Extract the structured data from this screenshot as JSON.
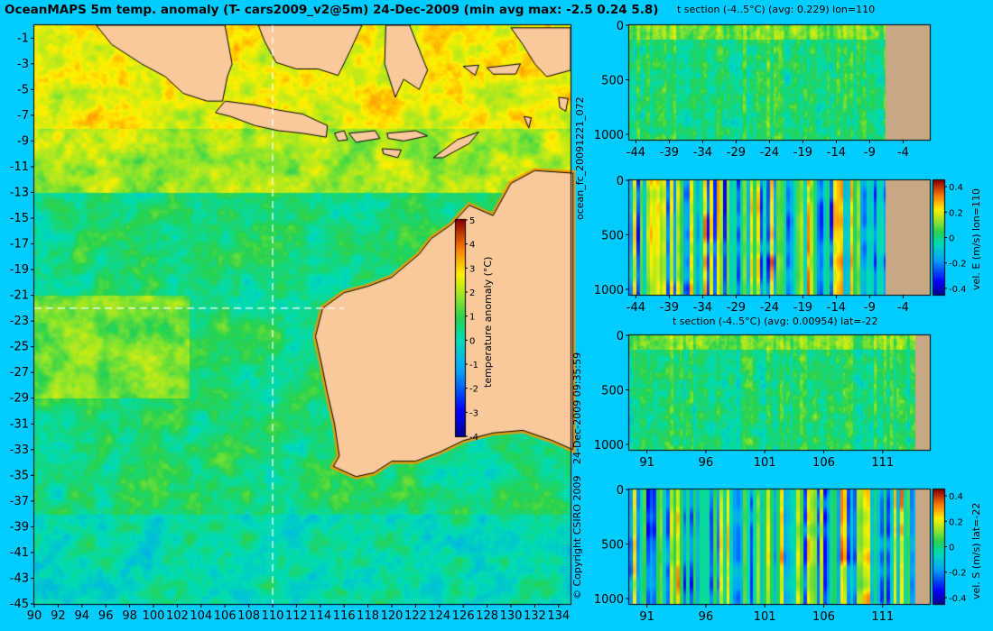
{
  "title": "OceanMAPS 5m temp. anomaly (T- cars2009_v2@5m) 24-Dec-2009 (min avg max: -2.5 0.24 5.8)",
  "colors": {
    "background": "#00ccff",
    "land": "#f9c89b",
    "section_land": "#c8a882"
  },
  "side_labels": {
    "forecast_id": "ocean_fc_20091221_072",
    "timestamp": "24-Dec-2009 09:35:59",
    "copyright": "© Copyright CSIRO 2009"
  },
  "chart_data": [
    {
      "type": "heatmap",
      "title": "OceanMAPS 5m temp. anomaly (T- cars2009_v2@5m) 24-Dec-2009 (min avg max: -2.5 0.24 5.8)",
      "x_ticks": [
        "90",
        "92",
        "94",
        "96",
        "98",
        "100",
        "102",
        "104",
        "106",
        "108",
        "110",
        "112",
        "114",
        "116",
        "118",
        "120",
        "122",
        "124",
        "126",
        "128",
        "130",
        "132",
        "134"
      ],
      "y_ticks": [
        "-1",
        "-3",
        "-5",
        "-7",
        "-9",
        "-11",
        "-13",
        "-15",
        "-17",
        "-19",
        "-21",
        "-23",
        "-25",
        "-27",
        "-29",
        "-31",
        "-33",
        "-35",
        "-37",
        "-39",
        "-41",
        "-43",
        "-45"
      ],
      "xlim": [
        90,
        135
      ],
      "ylim": [
        -45,
        0
      ],
      "crosshair": {
        "lon": 110,
        "lat": -22
      },
      "colorbar": {
        "label": "temperature anomaly (°C)",
        "ticks": [
          "5",
          "4",
          "3",
          "2",
          "1",
          "0",
          "-1",
          "-2",
          "-3",
          "-4"
        ],
        "range": [
          -4,
          5
        ]
      },
      "stats": {
        "min": -2.5,
        "avg": 0.24,
        "max": 5.8
      }
    },
    {
      "type": "heatmap",
      "title": "t section (-4..5°C) (avg: 0.229) lon=110",
      "x_ticks": [
        "-44",
        "-39",
        "-34",
        "-29",
        "-24",
        "-19",
        "-14",
        "-9",
        "-4"
      ],
      "y_ticks": [
        "0",
        "500",
        "1000"
      ],
      "xlim": [
        -45,
        0
      ],
      "ylim": [
        1050,
        0
      ]
    },
    {
      "type": "heatmap",
      "title": "",
      "x_ticks": [
        "-44",
        "-39",
        "-34",
        "-29",
        "-24",
        "-19",
        "-14",
        "-9",
        "-4"
      ],
      "y_ticks": [
        "0",
        "500",
        "1000"
      ],
      "xlim": [
        -45,
        0
      ],
      "ylim": [
        1050,
        0
      ],
      "colorbar": {
        "label": "vel. E (m/s) lon=110",
        "ticks": [
          "0.4",
          "0.2",
          "0",
          "-0.2",
          "-0.4"
        ],
        "range": [
          -0.45,
          0.45
        ]
      }
    },
    {
      "type": "heatmap",
      "title": "t section (-4..5°C) (avg: 0.00954) lat=-22",
      "x_ticks": [
        "91",
        "96",
        "101",
        "106",
        "111"
      ],
      "y_ticks": [
        "0",
        "500",
        "1000"
      ],
      "xlim": [
        89.5,
        115
      ],
      "ylim": [
        1050,
        0
      ]
    },
    {
      "type": "heatmap",
      "title": "",
      "x_ticks": [
        "91",
        "96",
        "101",
        "106",
        "111"
      ],
      "y_ticks": [
        "0",
        "500",
        "1000"
      ],
      "xlim": [
        89.5,
        115
      ],
      "ylim": [
        1050,
        0
      ],
      "colorbar": {
        "label": "vel. S (m/s) lat=-22",
        "ticks": [
          "0.4",
          "0.2",
          "0",
          "-0.2",
          "-0.4"
        ],
        "range": [
          -0.45,
          0.45
        ]
      }
    }
  ]
}
